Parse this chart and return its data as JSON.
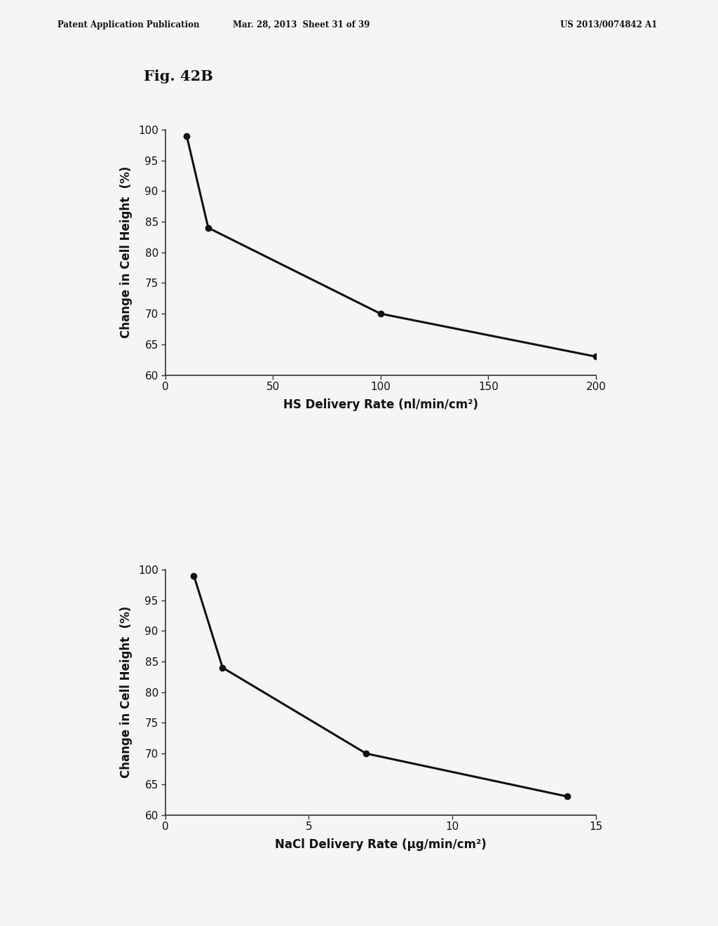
{
  "fig_label": "Fig. 42B",
  "patent_line1": "Patent Application Publication",
  "patent_line2": "Mar. 28, 2013  Sheet 31 of 39",
  "patent_line3": "US 2013/0074842 A1",
  "plot1": {
    "x": [
      10,
      20,
      100,
      200
    ],
    "y": [
      99,
      84,
      70,
      63
    ],
    "xlabel": "HS Delivery Rate (nl/min/cm²)",
    "ylabel": "Change in Cell Height  (%)",
    "xlim": [
      0,
      200
    ],
    "ylim": [
      60,
      100
    ],
    "xticks": [
      0,
      50,
      100,
      150,
      200
    ],
    "yticks": [
      60,
      65,
      70,
      75,
      80,
      85,
      90,
      95,
      100
    ]
  },
  "plot2": {
    "x": [
      1,
      2,
      7,
      14
    ],
    "y": [
      99,
      84,
      70,
      63
    ],
    "xlabel": "NaCl Delivery Rate (μg/min/cm²)",
    "ylabel": "Change in Cell Height  (%)",
    "xlim": [
      0,
      15
    ],
    "ylim": [
      60,
      100
    ],
    "xticks": [
      0,
      5,
      10,
      15
    ],
    "yticks": [
      60,
      65,
      70,
      75,
      80,
      85,
      90,
      95,
      100
    ]
  },
  "line_color": "#111111",
  "marker": "o",
  "marker_size": 6,
  "line_width": 2.2,
  "bg_color": "#f5f5f5",
  "plot_bg_color": "#f5f5f5",
  "tick_fontsize": 11,
  "label_fontsize": 12,
  "fig_label_fontsize": 15,
  "header_fontsize": 8.5
}
